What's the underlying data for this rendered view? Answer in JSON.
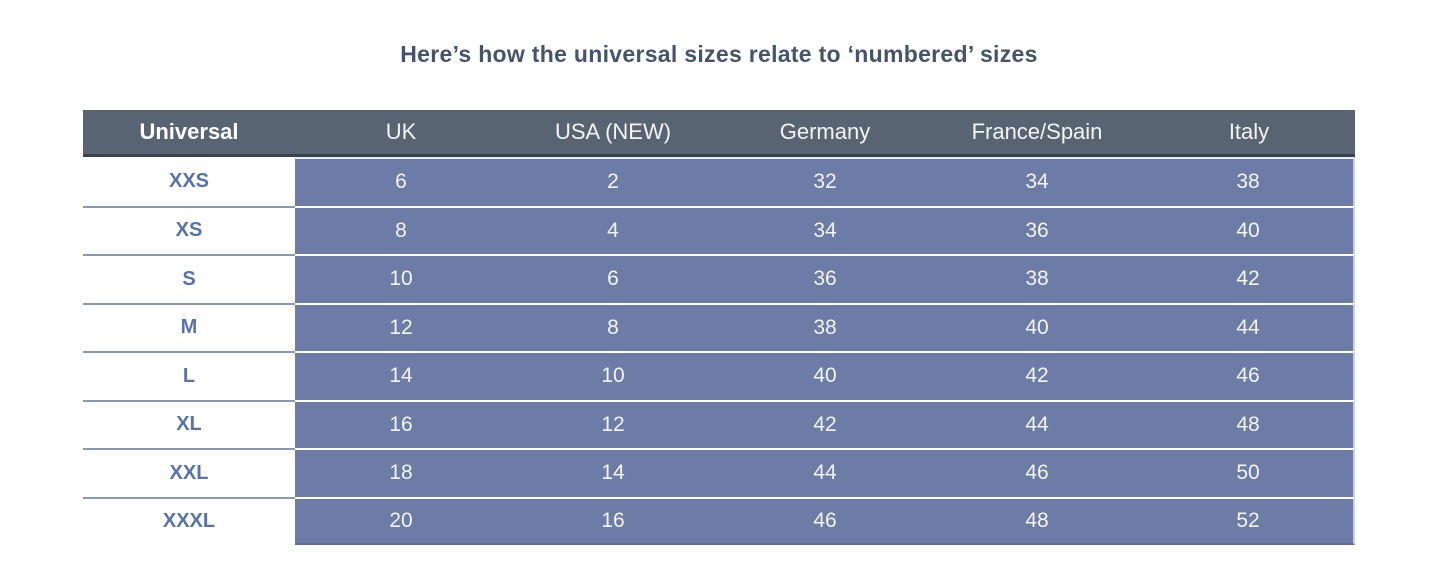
{
  "title": "Here’s how the universal sizes relate to ‘numbered’ sizes",
  "chart_data": {
    "type": "table",
    "title": "Here’s how the universal sizes relate to ‘numbered’ sizes",
    "columns": [
      "Universal",
      "UK",
      "USA (NEW)",
      "Germany",
      "France/Spain",
      "Italy"
    ],
    "rows": [
      [
        "XXS",
        "6",
        "2",
        "32",
        "34",
        "38"
      ],
      [
        "XS",
        "8",
        "4",
        "34",
        "36",
        "40"
      ],
      [
        "S",
        "10",
        "6",
        "36",
        "38",
        "42"
      ],
      [
        "M",
        "12",
        "8",
        "38",
        "40",
        "44"
      ],
      [
        "L",
        "14",
        "10",
        "40",
        "42",
        "46"
      ],
      [
        "XL",
        "16",
        "12",
        "42",
        "44",
        "48"
      ],
      [
        "XXL",
        "18",
        "14",
        "44",
        "46",
        "50"
      ],
      [
        "XXXL",
        "20",
        "16",
        "46",
        "48",
        "52"
      ]
    ],
    "layout": {
      "grid": "horizontal row separators only",
      "legend": "none"
    }
  },
  "colors": {
    "title_text": "#44546a",
    "header_bg": "#586471",
    "header_text": "#ffffff",
    "header_border_bottom": "#39424d",
    "value_cell_bg": "#6c7ca6",
    "value_cell_text": "#f4f5f8",
    "label_text": "#5873a8",
    "label_row_separator": "#8c98b1",
    "page_bg": "#ffffff"
  }
}
